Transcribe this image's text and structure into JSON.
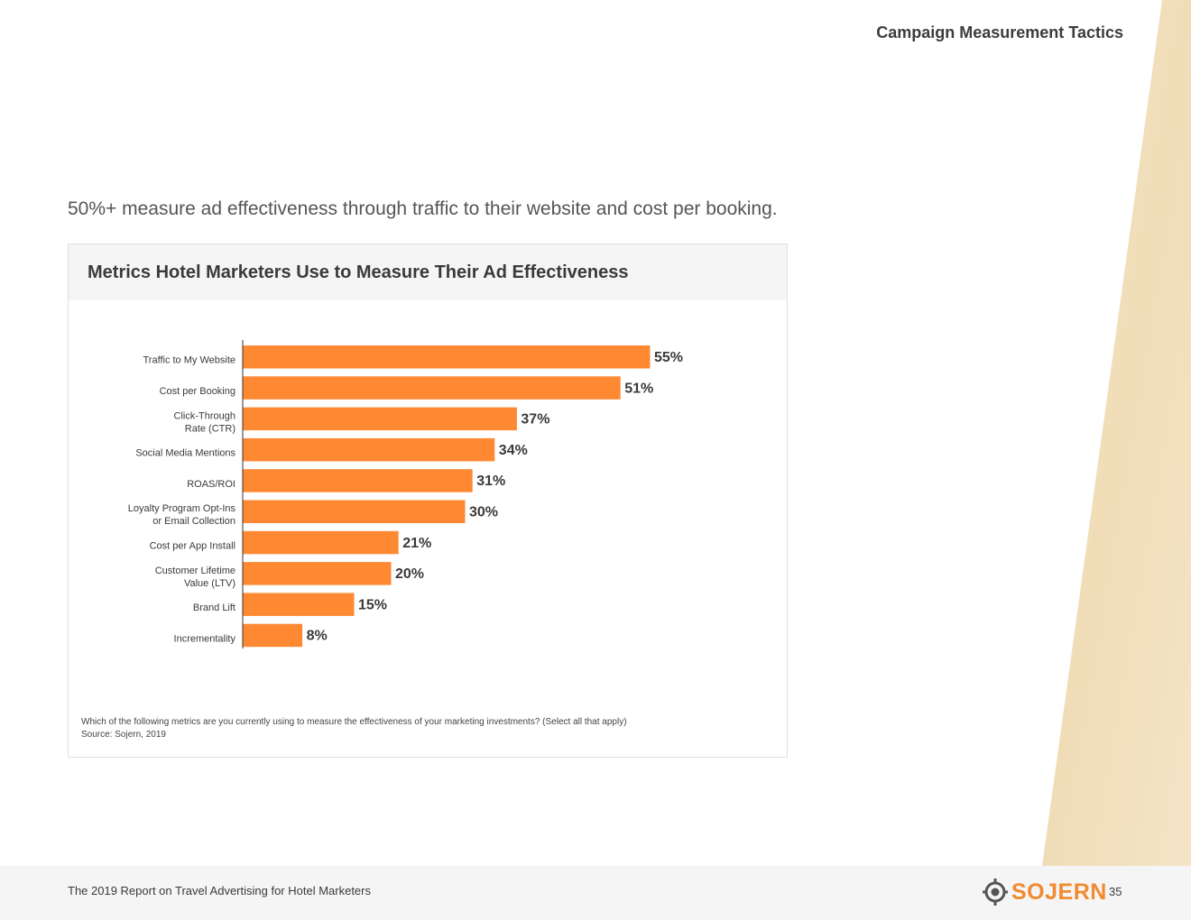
{
  "header": {
    "section_title": "Campaign Measurement Tactics"
  },
  "headline": "50%+ measure ad effectiveness through traffic to their website and cost per booking.",
  "chart_data": {
    "type": "bar",
    "orientation": "horizontal",
    "title": "Metrics Hotel Marketers Use to Measure Their Ad Effectiveness",
    "categories": [
      [
        "Traffic to My Website"
      ],
      [
        "Cost per Booking"
      ],
      [
        "Click-Through",
        "Rate (CTR)"
      ],
      [
        "Social Media Mentions"
      ],
      [
        "ROAS/ROI"
      ],
      [
        "Loyalty Program Opt-Ins",
        "or Email Collection"
      ],
      [
        "Cost per App Install"
      ],
      [
        "Customer Lifetime",
        "Value (LTV)"
      ],
      [
        "Brand Lift"
      ],
      [
        "Incrementality"
      ]
    ],
    "values": [
      55,
      51,
      37,
      34,
      31,
      30,
      21,
      20,
      15,
      8
    ],
    "value_labels": [
      "55%",
      "51%",
      "37%",
      "34%",
      "31%",
      "30%",
      "21%",
      "20%",
      "15%",
      "8%"
    ],
    "xlim": [
      0,
      100
    ],
    "bar_color": "#ff8833",
    "grid": false,
    "note": "Which of the following metrics are you currently using to measure the effectiveness of your marketing investments? (Select all that apply)",
    "source": "Source: Sojern, 2019"
  },
  "footer": {
    "report_title": "The 2019 Report on Travel Advertising for Hotel Marketers",
    "logo_text": "SOJERN",
    "logo_icon": "sojern-compass-icon",
    "page_number": "35"
  },
  "colors": {
    "accent": "#f28a30",
    "footer_bg": "#f5f5f5",
    "parchment": "#f1dfbd"
  }
}
